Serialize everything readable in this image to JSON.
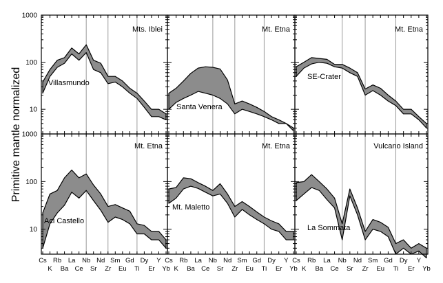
{
  "y_axis_label": "Primitive mantle normalized",
  "y_tick_labels": [
    "1000",
    "100",
    "10"
  ],
  "x_tick_labels": [
    "Cs",
    "K",
    "Rb",
    "Ba",
    "La",
    "Ce",
    "Nb",
    "Sr",
    "Nd",
    "Zr",
    "Sm",
    "Eu",
    "Gd",
    "Ti",
    "Dy",
    "Er",
    "Y",
    "Yb"
  ],
  "colors": {
    "envelope_fill": "#8c8c8c",
    "stroke": "#000000",
    "guide_line": "#9a9a9a"
  },
  "chart_data": [
    {
      "type": "area",
      "id": "villasmundo",
      "region": "Mts. Iblei",
      "sample": "Villasmundo",
      "yscale": "log",
      "ylim": [
        3,
        1000
      ],
      "x": [
        "Cs",
        "K",
        "Rb",
        "Ba",
        "La",
        "Ce",
        "Nb",
        "Sr",
        "Nd",
        "Zr",
        "Sm",
        "Eu",
        "Gd",
        "Ti",
        "Dy",
        "Er",
        "Y",
        "Yb"
      ],
      "upper": [
        38,
        70,
        110,
        125,
        200,
        150,
        235,
        110,
        95,
        50,
        50,
        40,
        28,
        22,
        15,
        10,
        10,
        8
      ],
      "lower": [
        22,
        50,
        78,
        95,
        150,
        110,
        160,
        70,
        60,
        35,
        38,
        30,
        22,
        17,
        11,
        7,
        7,
        6
      ]
    },
    {
      "type": "area",
      "id": "santa-venera",
      "region": "Mt. Etna",
      "sample": "Santa Venera",
      "yscale": "log",
      "ylim": [
        3,
        1000
      ],
      "x": [
        "Cs",
        "K",
        "Rb",
        "Ba",
        "La",
        "Ce",
        "Nb",
        "Sr",
        "Nd",
        "Zr",
        "Sm",
        "Eu",
        "Gd",
        "Ti",
        "Dy",
        "Er",
        "Y",
        "Yb"
      ],
      "upper": [
        22,
        28,
        40,
        58,
        75,
        80,
        78,
        72,
        42,
        13,
        15,
        13,
        11,
        9,
        7,
        6,
        5,
        4
      ],
      "lower": [
        10,
        14,
        17,
        20,
        24,
        22,
        20,
        17,
        13,
        8,
        10,
        9,
        8,
        7,
        6,
        5,
        5,
        3.5
      ]
    },
    {
      "type": "area",
      "id": "se-crater",
      "region": "Mt. Etna",
      "sample": "SE-Crater",
      "yscale": "log",
      "ylim": [
        3,
        1000
      ],
      "x": [
        "Cs",
        "K",
        "Rb",
        "Ba",
        "La",
        "Ce",
        "Nb",
        "Sr",
        "Nd",
        "Zr",
        "Sm",
        "Eu",
        "Gd",
        "Ti",
        "Dy",
        "Er",
        "Y",
        "Yb"
      ],
      "upper": [
        80,
        100,
        125,
        120,
        115,
        90,
        90,
        75,
        60,
        27,
        33,
        28,
        20,
        15,
        10,
        10,
        7,
        5
      ],
      "lower": [
        50,
        75,
        92,
        100,
        95,
        80,
        75,
        60,
        50,
        20,
        25,
        20,
        15,
        12,
        8,
        8,
        6,
        4
      ]
    },
    {
      "type": "area",
      "id": "aci-castello",
      "region": "Mt. Etna",
      "sample": "Aci Castello",
      "yscale": "log",
      "ylim": [
        3,
        1000
      ],
      "x": [
        "Cs",
        "K",
        "Rb",
        "Ba",
        "La",
        "Ce",
        "Nb",
        "Sr",
        "Nd",
        "Zr",
        "Sm",
        "Eu",
        "Gd",
        "Ti",
        "Dy",
        "Er",
        "Y",
        "Yb"
      ],
      "upper": [
        22,
        55,
        65,
        120,
        175,
        120,
        145,
        85,
        55,
        30,
        33,
        28,
        24,
        13,
        12,
        9,
        9,
        6
      ],
      "lower": [
        4,
        13,
        22,
        32,
        60,
        45,
        65,
        40,
        25,
        14,
        18,
        16,
        13,
        8,
        8,
        6,
        6,
        4
      ]
    },
    {
      "type": "area",
      "id": "mt-maletto",
      "region": "Mt. Etna",
      "sample": "Mt. Maletto",
      "yscale": "log",
      "ylim": [
        3,
        1000
      ],
      "x": [
        "Cs",
        "K",
        "Rb",
        "Ba",
        "La",
        "Ce",
        "Nb",
        "Sr",
        "Nd",
        "Zr",
        "Sm",
        "Eu",
        "Gd",
        "Ti",
        "Dy",
        "Er",
        "Y",
        "Yb"
      ],
      "upper": [
        70,
        75,
        120,
        115,
        95,
        80,
        65,
        90,
        55,
        30,
        38,
        30,
        23,
        18,
        15,
        13,
        9,
        9
      ],
      "lower": [
        35,
        45,
        70,
        80,
        72,
        60,
        50,
        55,
        35,
        18,
        26,
        20,
        16,
        13,
        10,
        9,
        6,
        6
      ]
    },
    {
      "type": "area",
      "id": "la-sommata",
      "region": "Vulcano Island",
      "sample": "La Sommata",
      "yscale": "log",
      "ylim": [
        3,
        1000
      ],
      "x": [
        "Cs",
        "K",
        "Rb",
        "Ba",
        "La",
        "Ce",
        "Nb",
        "Sr",
        "Nd",
        "Zr",
        "Sm",
        "Eu",
        "Gd",
        "Ti",
        "Dy",
        "Er",
        "Y",
        "Yb"
      ],
      "upper": [
        95,
        100,
        140,
        100,
        70,
        45,
        13,
        70,
        28,
        9,
        16,
        14,
        11,
        5,
        6,
        4,
        5,
        4
      ],
      "lower": [
        40,
        55,
        75,
        65,
        42,
        28,
        6,
        50,
        20,
        6,
        10,
        9,
        7,
        3,
        4,
        3,
        3.5,
        2.5
      ]
    }
  ]
}
